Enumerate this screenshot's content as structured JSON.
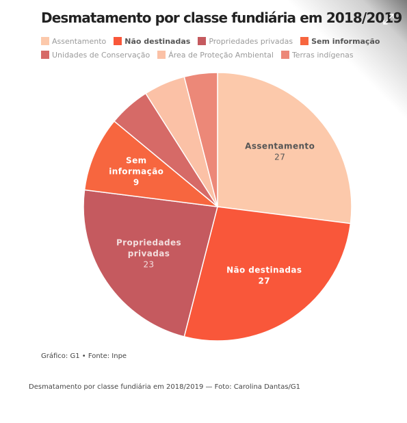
{
  "chart_data": {
    "type": "pie",
    "title": "Desmatamento por classe fundiária em 2018/2019",
    "categories": [
      "Assentamento",
      "Não destinadas",
      "Propriedades privadas",
      "Sem informação",
      "Unidades de Conservação",
      "Área de Proteção Ambiental",
      "Terras indígenas"
    ],
    "values": [
      27,
      27,
      23,
      9,
      5,
      5,
      4
    ],
    "colors": [
      "#fcc9ab",
      "#f9573a",
      "#c55a5f",
      "#f7663f",
      "#d66a67",
      "#fbc1a6",
      "#ec8878"
    ],
    "legend_placement": "top",
    "legend": [
      {
        "label": "Assentamento",
        "bold": false
      },
      {
        "label": "Não destinadas",
        "bold": true
      },
      {
        "label": "Propriedades privadas",
        "bold": false
      },
      {
        "label": "Sem informação",
        "bold": true
      },
      {
        "label": "Unidades de Conservação",
        "bold": false
      },
      {
        "label": "Área de Proteção Ambiental",
        "bold": false
      },
      {
        "label": "Terras indígenas",
        "bold": false
      }
    ],
    "slice_labels": [
      {
        "lines": [
          "Assentamento"
        ],
        "value": "27",
        "label_color": "#555555",
        "value_color": "#555555",
        "value_bold": false
      },
      {
        "lines": [
          "Não destinadas"
        ],
        "value": "27",
        "label_color": "#ffffff",
        "value_color": "#ffffff",
        "value_bold": true
      },
      {
        "lines": [
          "Propriedades",
          "privadas"
        ],
        "value": "23",
        "label_color": "#f3dede",
        "value_color": "#f3dede",
        "value_bold": false
      },
      {
        "lines": [
          "Sem",
          "informação"
        ],
        "value": "9",
        "label_color": "#ffffff",
        "value_color": "#ffffff",
        "value_bold": true
      }
    ]
  },
  "source": "Gráfico: G1 • Fonte: Inpe",
  "caption": "Desmatamento por classe fundiária em 2018/2019 — Foto: Carolina Dantas/G1",
  "icons": {
    "expand": "expand-icon"
  }
}
